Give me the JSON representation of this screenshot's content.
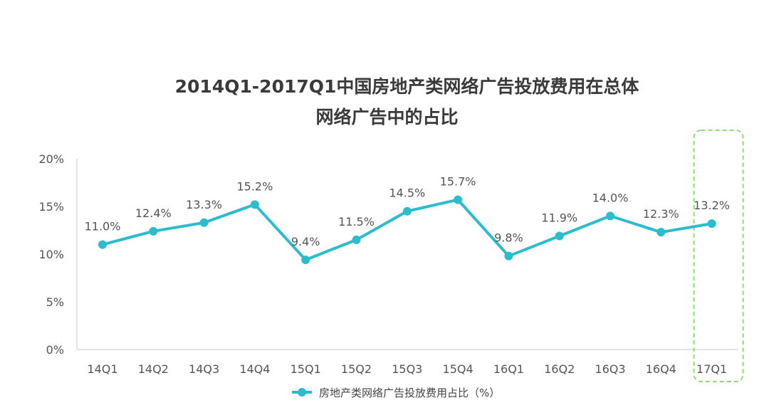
{
  "chart_data": {
    "type": "line",
    "title_line1": "2014Q1-2017Q1中国房地产类网络广告投放费用在总体",
    "title_line2": "网络广告中的占比",
    "categories": [
      "14Q1",
      "14Q2",
      "14Q3",
      "14Q4",
      "15Q1",
      "15Q2",
      "15Q3",
      "15Q4",
      "16Q1",
      "16Q2",
      "16Q3",
      "16Q4",
      "17Q1"
    ],
    "series": [
      {
        "name": "房地产类网络广告投放费用占比（%）",
        "values": [
          11.0,
          12.4,
          13.3,
          15.2,
          9.4,
          11.5,
          14.5,
          15.7,
          9.8,
          11.9,
          14.0,
          12.3,
          13.2
        ],
        "labels": [
          "11.0%",
          "12.4%",
          "13.3%",
          "15.2%",
          "9.4%",
          "11.5%",
          "14.5%",
          "15.7%",
          "9.8%",
          "11.9%",
          "14.0%",
          "12.3%",
          "13.2%"
        ]
      }
    ],
    "y_ticks": [
      "0%",
      "5%",
      "10%",
      "15%",
      "20%"
    ],
    "y_tick_values": [
      0,
      5,
      10,
      15,
      20
    ],
    "ylim": [
      0,
      20
    ],
    "grid": false,
    "legend_position": "bottom-center",
    "highlighted_category": "17Q1",
    "colors": {
      "line": "#2dbccd",
      "highlight_box": "#8fdc7a",
      "axis": "#c8c8c8"
    }
  }
}
